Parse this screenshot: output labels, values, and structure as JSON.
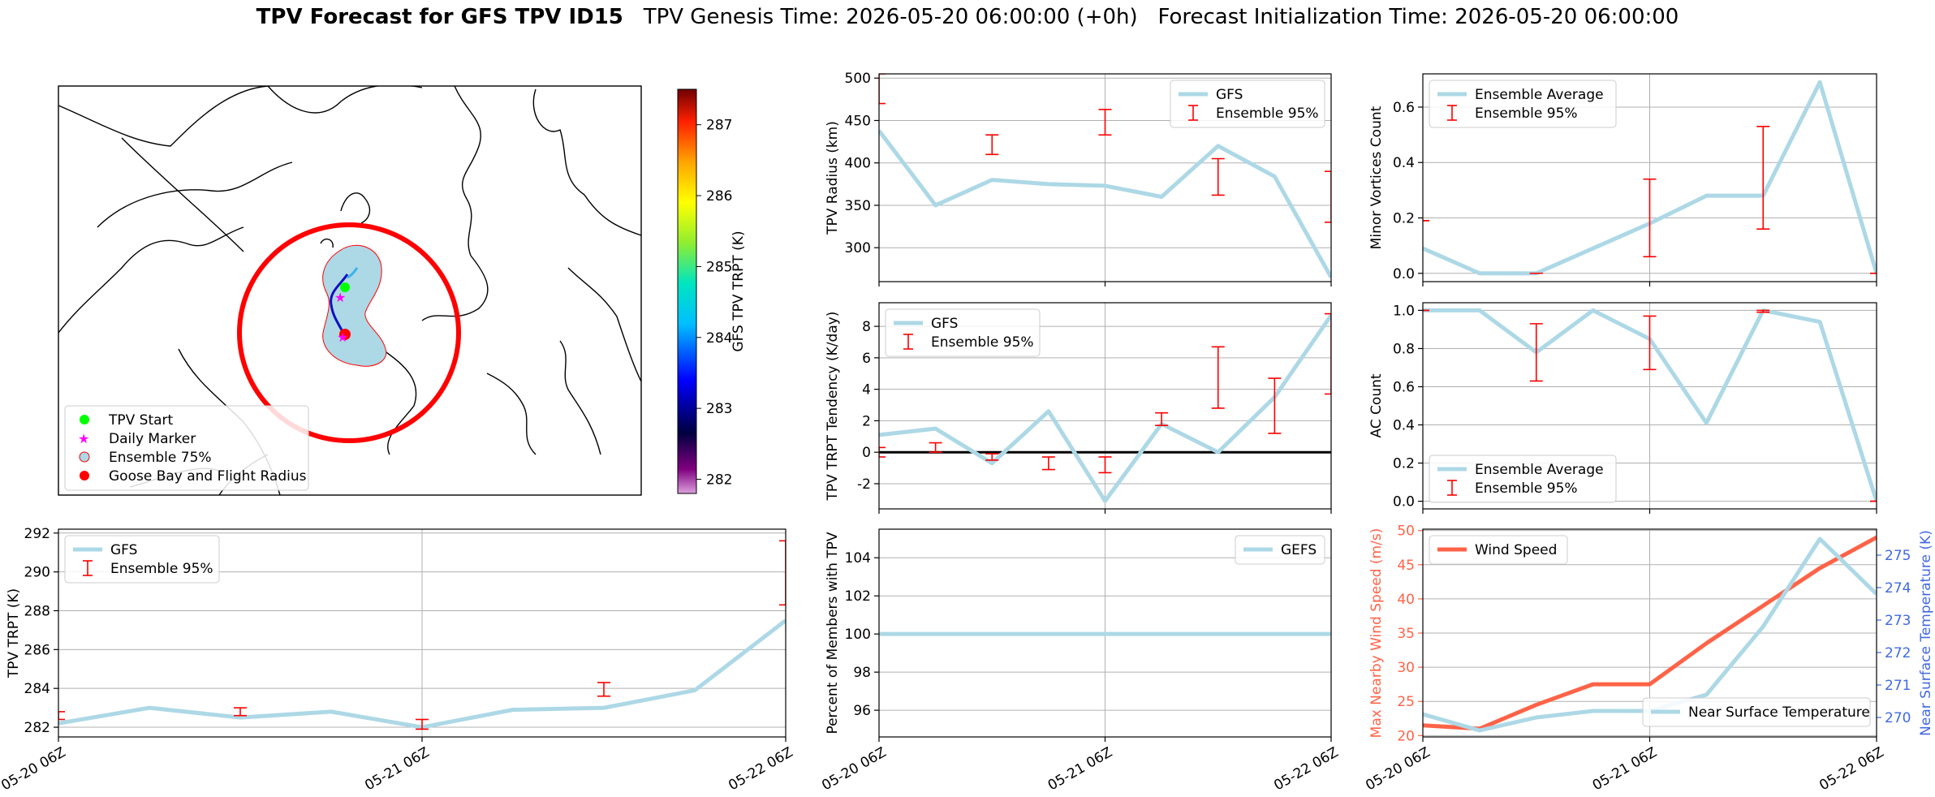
{
  "figure": {
    "title_bold": "TPV Forecast for GFS TPV ID15",
    "title_genesis": "TPV Genesis Time: 2026-05-20 06:00:00 (+0h)",
    "title_init": "Forecast Initialization Time: 2026-05-20 06:00:00"
  },
  "map": {
    "colorbar_label": "GFS TPV TRPT (K)",
    "colorbar_ticks": [
      "282",
      "283",
      "284",
      "285",
      "286",
      "287"
    ],
    "colorbar_range": [
      281.8,
      287.5
    ],
    "legend": [
      {
        "label": "TPV Start",
        "marker": "circle",
        "color": "#00ff00"
      },
      {
        "label": "Daily Marker",
        "marker": "star",
        "color": "#ff00ff"
      },
      {
        "label": "Ensemble 75%",
        "marker": "circle-outline",
        "color": "#add8e6"
      },
      {
        "label": "Goose Bay and Flight Radius",
        "marker": "circle",
        "color": "#ff0000"
      }
    ]
  },
  "x_ticks": [
    "05-20 06Z",
    "05-21 06Z",
    "05-22 06Z"
  ],
  "chart_data": [
    {
      "id": "radius",
      "type": "line",
      "ylabel": "TPV Radius (km)",
      "ylim": [
        260,
        505
      ],
      "yticks": [
        300,
        350,
        400,
        450,
        500
      ],
      "grid": true,
      "legend_position": "top-right",
      "x": [
        0,
        6,
        12,
        18,
        24,
        30,
        36,
        42,
        48
      ],
      "series": [
        {
          "name": "GFS",
          "color": "#add8e6",
          "values": [
            438,
            350,
            380,
            375,
            373,
            360,
            420,
            384,
            265
          ]
        }
      ],
      "errorbars": {
        "name": "Ensemble 95%",
        "color": "#ff0000",
        "x": [
          0,
          12,
          24,
          36,
          48
        ],
        "low": [
          470,
          410,
          433,
          362,
          330
        ],
        "high": [
          505,
          433,
          463,
          405,
          390
        ]
      }
    },
    {
      "id": "minor",
      "type": "line",
      "ylabel": "Minor Vortices Count",
      "ylim": [
        -0.03,
        0.72
      ],
      "yticks": [
        0.0,
        0.2,
        0.4,
        0.6
      ],
      "grid": true,
      "legend_position": "top-left",
      "x": [
        0,
        6,
        12,
        18,
        24,
        30,
        36,
        42,
        48
      ],
      "series": [
        {
          "name": "Ensemble Average",
          "color": "#add8e6",
          "values": [
            0.09,
            0.0,
            0.0,
            0.09,
            0.18,
            0.28,
            0.28,
            0.69,
            0.0
          ]
        }
      ],
      "errorbars": {
        "name": "Ensemble 95%",
        "color": "#ff0000",
        "x": [
          0,
          12,
          24,
          36,
          48
        ],
        "low": [
          0.19,
          0.0,
          0.06,
          0.16,
          0.0
        ],
        "high": [
          0.19,
          0.0,
          0.34,
          0.53,
          0.0
        ]
      }
    },
    {
      "id": "tendency",
      "type": "line",
      "ylabel": "TPV TRPT Tendency (K/day)",
      "ylim": [
        -3.6,
        9.5
      ],
      "yticks": [
        -2,
        0,
        2,
        4,
        6,
        8
      ],
      "grid": true,
      "legend_position": "top-left",
      "zero_line": true,
      "x": [
        0,
        6,
        12,
        18,
        24,
        30,
        36,
        42,
        48
      ],
      "series": [
        {
          "name": "GFS",
          "color": "#add8e6",
          "values": [
            1.1,
            1.5,
            -0.7,
            2.6,
            -3.1,
            1.8,
            0.0,
            3.5,
            8.7
          ]
        }
      ],
      "errorbars": {
        "name": "Ensemble 95%",
        "color": "#ff0000",
        "x": [
          0,
          6,
          12,
          18,
          24,
          30,
          36,
          42,
          48
        ],
        "low": [
          -0.3,
          0.0,
          -0.5,
          -1.1,
          -1.3,
          1.7,
          2.8,
          1.2,
          3.7
        ],
        "high": [
          0.3,
          0.6,
          -0.1,
          -0.3,
          -0.3,
          2.5,
          6.7,
          4.7,
          8.8
        ]
      }
    },
    {
      "id": "ac",
      "type": "line",
      "ylabel": "AC Count",
      "ylim": [
        -0.04,
        1.04
      ],
      "yticks": [
        0.0,
        0.2,
        0.4,
        0.6,
        0.8,
        1.0
      ],
      "grid": true,
      "legend_position": "bottom-left",
      "x": [
        0,
        6,
        12,
        18,
        24,
        30,
        36,
        42,
        48
      ],
      "series": [
        {
          "name": "Ensemble Average",
          "color": "#add8e6",
          "values": [
            1.0,
            1.0,
            0.78,
            1.0,
            0.85,
            0.41,
            1.0,
            0.94,
            0.0
          ]
        }
      ],
      "errorbars": {
        "name": "Ensemble 95%",
        "color": "#ff0000",
        "x": [
          0,
          12,
          24,
          36,
          48
        ],
        "low": [
          1.0,
          0.63,
          0.69,
          0.99,
          0.0
        ],
        "high": [
          1.0,
          0.93,
          0.97,
          1.0,
          0.0
        ]
      }
    },
    {
      "id": "trpt",
      "type": "line",
      "ylabel": "TPV TRPT (K)",
      "ylim": [
        281.5,
        292.2
      ],
      "yticks": [
        282,
        284,
        286,
        288,
        290,
        292
      ],
      "grid": true,
      "legend_position": "top-left",
      "x": [
        0,
        6,
        12,
        18,
        24,
        30,
        36,
        42,
        48
      ],
      "series": [
        {
          "name": "GFS",
          "color": "#add8e6",
          "values": [
            282.2,
            283.0,
            282.5,
            282.8,
            282.0,
            282.9,
            283.0,
            283.9,
            287.5
          ]
        }
      ],
      "errorbars": {
        "name": "Ensemble 95%",
        "color": "#ff0000",
        "x": [
          0,
          12,
          24,
          36,
          48
        ],
        "low": [
          282.4,
          282.6,
          281.9,
          283.6,
          288.3
        ],
        "high": [
          282.8,
          283.0,
          282.4,
          284.3,
          291.6
        ]
      }
    },
    {
      "id": "percent",
      "type": "line",
      "ylabel": "Percent of Members with TPV",
      "ylim": [
        94.6,
        105.5
      ],
      "yticks": [
        96,
        98,
        100,
        102,
        104
      ],
      "grid": true,
      "legend_position": "top-right",
      "x": [
        0,
        48
      ],
      "series": [
        {
          "name": "GEFS",
          "color": "#add8e6",
          "values": [
            100,
            100
          ]
        }
      ]
    },
    {
      "id": "wind",
      "type": "line",
      "ylabel": "Max Nearby Wind Speed (m/s)",
      "ylim": [
        19.8,
        50.2
      ],
      "yticks": [
        20,
        25,
        30,
        35,
        40,
        45,
        50
      ],
      "grid": true,
      "legend_position": "top-left",
      "ylabel_right": "Near Surface Temperature (K)",
      "ylim_right": [
        269.4,
        275.8
      ],
      "yticks_right": [
        270,
        271,
        272,
        273,
        274,
        275
      ],
      "x": [
        0,
        6,
        12,
        18,
        24,
        30,
        36,
        42,
        48
      ],
      "series": [
        {
          "name": "Wind Speed",
          "color": "#ff6347",
          "axis": "left",
          "values": [
            21.5,
            21.0,
            24.5,
            27.5,
            27.5,
            33.5,
            39.0,
            44.5,
            49.0
          ]
        },
        {
          "name": "Near Surface Temperature",
          "color": "#add8e6",
          "axis": "right",
          "values": [
            270.1,
            269.6,
            270.0,
            270.2,
            270.2,
            270.7,
            272.8,
            275.5,
            273.8
          ]
        }
      ]
    }
  ]
}
